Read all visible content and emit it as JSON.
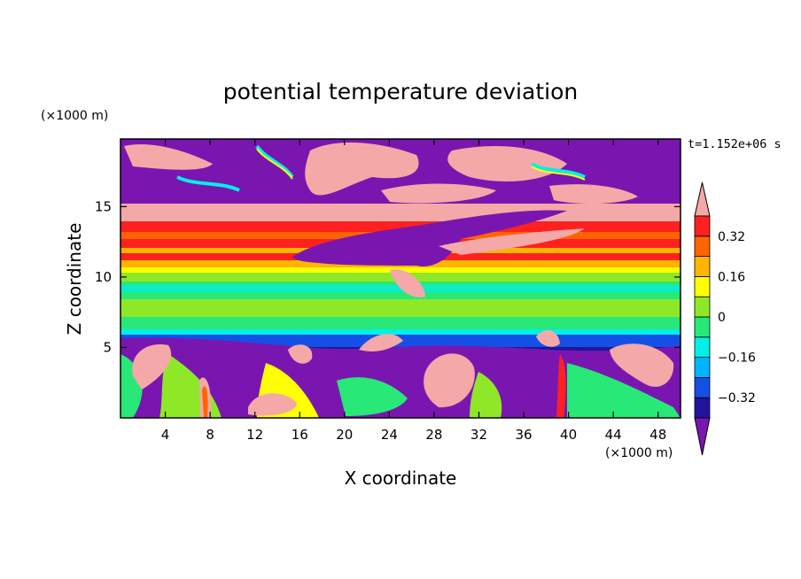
{
  "chart_data": {
    "type": "heatmap",
    "title": "potential temperature deviation",
    "xlabel": "X coordinate",
    "ylabel": "Z coordinate",
    "x_unit": "(×1000 m)",
    "y_unit": "(×1000 m)",
    "time_label": "t=1.152e+06 s",
    "xlim": [
      0,
      50
    ],
    "ylim": [
      0,
      19.8
    ],
    "x_ticks": [
      4,
      8,
      12,
      16,
      20,
      24,
      28,
      32,
      36,
      40,
      44,
      48
    ],
    "y_ticks": [
      5,
      10,
      15
    ],
    "colorbar": {
      "levels": [
        -0.4,
        -0.32,
        -0.24,
        -0.16,
        -0.08,
        0,
        0.08,
        0.16,
        0.24,
        0.32,
        0.4
      ],
      "tick_labels": [
        {
          "value": 0.32,
          "text": "0.32"
        },
        {
          "value": 0.16,
          "text": "0.16"
        },
        {
          "value": 0,
          "text": "0"
        },
        {
          "value": -0.16,
          "text": "−0.16"
        },
        {
          "value": -0.32,
          "text": "−0.32"
        }
      ],
      "colors": [
        "#7a16b0",
        "#22149c",
        "#1450e6",
        "#00b4ff",
        "#00f0e8",
        "#28e878",
        "#8ee828",
        "#ffff00",
        "#ffb400",
        "#ff6400",
        "#ff2020",
        "#f5a8a8"
      ]
    }
  }
}
